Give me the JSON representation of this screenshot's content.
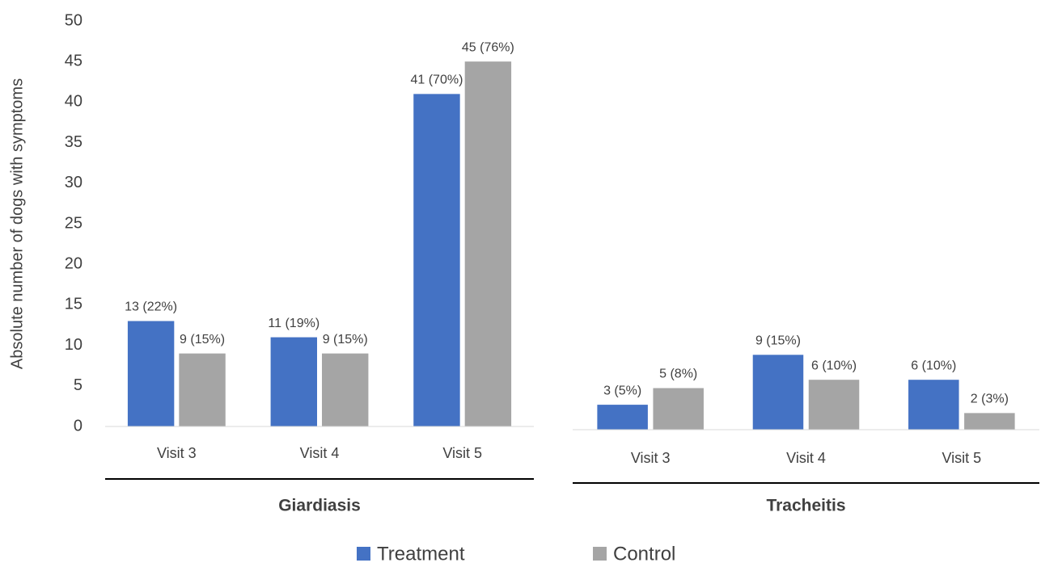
{
  "chart_data": [
    {
      "type": "bar",
      "group_label": "Giardiasis",
      "ylabel": "Absolute number of dogs with symptoms",
      "categories": [
        "Visit 3",
        "Visit 4",
        "Visit 5"
      ],
      "series": [
        {
          "name": "Treatment",
          "color": "#4472c4",
          "values": [
            13,
            11,
            41
          ],
          "value_labels": [
            "13 (22%)",
            "11 (19%)",
            "41 (70%)"
          ]
        },
        {
          "name": "Control",
          "color": "#a5a5a5",
          "values": [
            9,
            9,
            45
          ],
          "value_labels": [
            "9 (15%)",
            "9 (15%)",
            "45 (76%)"
          ]
        }
      ],
      "ylim": [
        0,
        50
      ],
      "yticks": [
        0,
        5,
        10,
        15,
        20,
        25,
        30,
        35,
        40,
        45,
        50
      ],
      "grid": false
    },
    {
      "type": "bar",
      "group_label": "Tracheitis",
      "categories": [
        "Visit 3",
        "Visit 4",
        "Visit 5"
      ],
      "series": [
        {
          "name": "Treatment",
          "color": "#4472c4",
          "values": [
            3,
            9,
            6
          ],
          "value_labels": [
            "3 (5%)",
            "9 (15%)",
            "6 (10%)"
          ]
        },
        {
          "name": "Control",
          "color": "#a5a5a5",
          "values": [
            5,
            6,
            2
          ],
          "value_labels": [
            "5 (8%)",
            "6 (10%)",
            "2 (3%)"
          ]
        }
      ],
      "ylim": [
        0,
        50
      ],
      "grid": false
    }
  ]
}
